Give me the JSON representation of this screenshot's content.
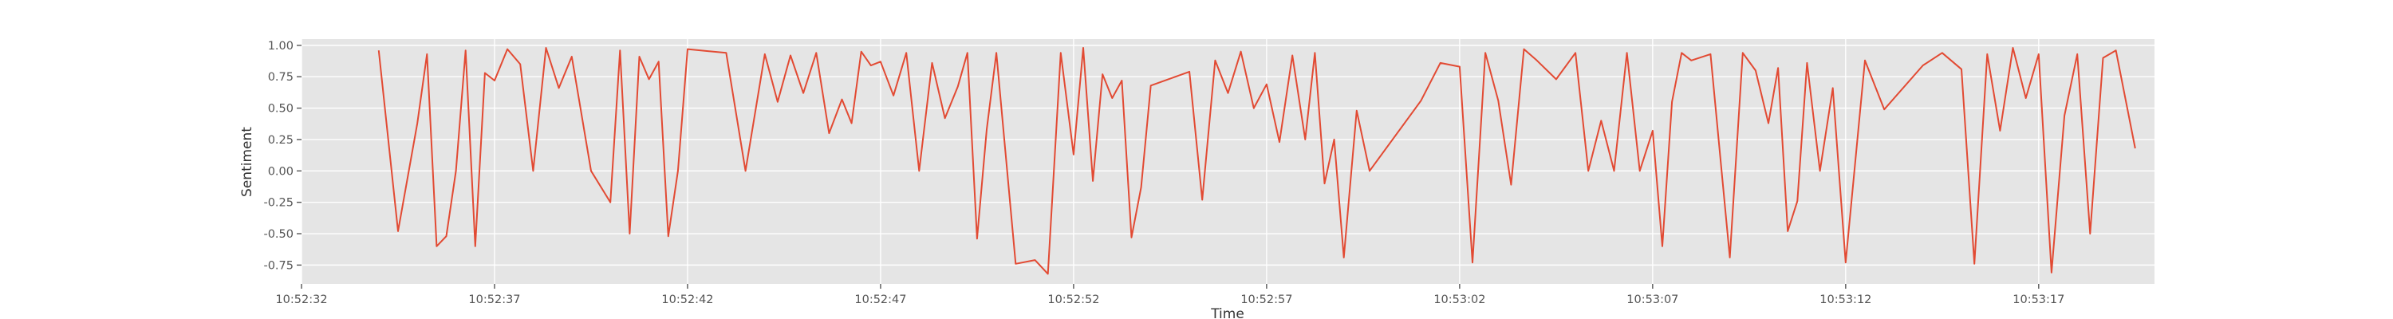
{
  "chart_data": {
    "type": "line",
    "title": "",
    "xlabel": "Time",
    "ylabel": "Sentiment",
    "xlim": [
      "10:52:32",
      "10:53:20"
    ],
    "ylim": [
      -0.9,
      1.05
    ],
    "grid": true,
    "legend": "none",
    "x_ticks": [
      "10:52:32",
      "10:52:37",
      "10:52:42",
      "10:52:47",
      "10:52:52",
      "10:52:57",
      "10:53:02",
      "10:53:07",
      "10:53:12",
      "10:53:17"
    ],
    "y_ticks": [
      "1.00",
      "0.75",
      "0.50",
      "0.25",
      "0.00",
      "-0.25",
      "-0.50",
      "-0.75"
    ],
    "y_tick_values": [
      1.0,
      0.75,
      0.5,
      0.25,
      0.0,
      -0.25,
      -0.5,
      -0.75
    ],
    "series": [
      {
        "color": "#e24a33",
        "points": [
          [
            "10:52:34",
            0.96
          ],
          [
            "10:52:34",
            -0.48
          ],
          [
            "10:52:35",
            0.38
          ],
          [
            "10:52:35",
            0.93
          ],
          [
            "10:52:35",
            -0.6
          ],
          [
            "10:52:35",
            -0.52
          ],
          [
            "10:52:36",
            0.0
          ],
          [
            "10:52:36",
            0.96
          ],
          [
            "10:52:36",
            -0.6
          ],
          [
            "10:52:36",
            0.78
          ],
          [
            "10:52:37",
            0.72
          ],
          [
            "10:52:37",
            0.97
          ],
          [
            "10:52:37",
            0.85
          ],
          [
            "10:52:38",
            0.0
          ],
          [
            "10:52:38",
            0.98
          ],
          [
            "10:52:38",
            0.66
          ],
          [
            "10:52:39",
            0.91
          ],
          [
            "10:52:39",
            0.0
          ],
          [
            "10:52:40",
            -0.25
          ],
          [
            "10:52:40",
            0.96
          ],
          [
            "10:52:40",
            -0.5
          ],
          [
            "10:52:40",
            0.91
          ],
          [
            "10:52:41",
            0.73
          ],
          [
            "10:52:41",
            0.87
          ],
          [
            "10:52:41",
            -0.52
          ],
          [
            "10:52:41",
            0.0
          ],
          [
            "10:52:42",
            0.97
          ],
          [
            "10:52:43",
            0.94
          ],
          [
            "10:52:43",
            0.0
          ],
          [
            "10:52:44",
            0.93
          ],
          [
            "10:52:44",
            0.55
          ],
          [
            "10:52:44",
            0.92
          ],
          [
            "10:52:45",
            0.62
          ],
          [
            "10:52:45",
            0.94
          ],
          [
            "10:52:45",
            0.3
          ],
          [
            "10:52:46",
            0.57
          ],
          [
            "10:52:46",
            0.38
          ],
          [
            "10:52:46",
            0.95
          ],
          [
            "10:52:46",
            0.84
          ],
          [
            "10:52:47",
            0.87
          ],
          [
            "10:52:47",
            0.6
          ],
          [
            "10:52:47",
            0.94
          ],
          [
            "10:52:48",
            0.0
          ],
          [
            "10:52:48",
            0.86
          ],
          [
            "10:52:48",
            0.42
          ],
          [
            "10:52:49",
            0.67
          ],
          [
            "10:52:49",
            0.94
          ],
          [
            "10:52:49",
            -0.54
          ],
          [
            "10:52:49",
            0.33
          ],
          [
            "10:52:50",
            0.94
          ],
          [
            "10:52:50",
            -0.74
          ],
          [
            "10:52:51",
            -0.71
          ],
          [
            "10:52:51",
            -0.82
          ],
          [
            "10:52:51",
            0.94
          ],
          [
            "10:52:52",
            0.13
          ],
          [
            "10:52:52",
            0.98
          ],
          [
            "10:52:52",
            -0.08
          ],
          [
            "10:52:52",
            0.77
          ],
          [
            "10:52:53",
            0.58
          ],
          [
            "10:52:53",
            0.72
          ],
          [
            "10:52:53",
            -0.53
          ],
          [
            "10:52:53",
            -0.13
          ],
          [
            "10:52:54",
            0.68
          ],
          [
            "10:52:55",
            0.79
          ],
          [
            "10:52:55",
            -0.23
          ],
          [
            "10:52:55",
            0.88
          ],
          [
            "10:52:56",
            0.62
          ],
          [
            "10:52:56",
            0.95
          ],
          [
            "10:52:56",
            0.5
          ],
          [
            "10:52:57",
            0.69
          ],
          [
            "10:52:57",
            0.23
          ],
          [
            "10:52:57",
            0.92
          ],
          [
            "10:52:58",
            0.25
          ],
          [
            "10:52:58",
            0.94
          ],
          [
            "10:52:58",
            -0.1
          ],
          [
            "10:52:58",
            0.25
          ],
          [
            "10:52:59",
            -0.69
          ],
          [
            "10:52:59",
            0.48
          ],
          [
            "10:52:59",
            0.0
          ],
          [
            "10:53:01",
            0.56
          ],
          [
            "10:53:01",
            0.86
          ],
          [
            "10:53:02",
            0.83
          ],
          [
            "10:53:02",
            -0.73
          ],
          [
            "10:53:02",
            0.94
          ],
          [
            "10:53:03",
            0.56
          ],
          [
            "10:53:03",
            -0.11
          ],
          [
            "10:53:03",
            0.97
          ],
          [
            "10:53:04",
            0.88
          ],
          [
            "10:53:04",
            0.73
          ],
          [
            "10:53:05",
            0.94
          ],
          [
            "10:53:05",
            0.0
          ],
          [
            "10:53:05",
            0.4
          ],
          [
            "10:53:06",
            0.0
          ],
          [
            "10:53:06",
            0.94
          ],
          [
            "10:53:06",
            0.0
          ],
          [
            "10:53:07",
            0.32
          ],
          [
            "10:53:07",
            -0.6
          ],
          [
            "10:53:07",
            0.55
          ],
          [
            "10:53:07",
            0.94
          ],
          [
            "10:53:08",
            0.88
          ],
          [
            "10:53:08",
            0.93
          ],
          [
            "10:53:09",
            -0.69
          ],
          [
            "10:53:09",
            0.94
          ],
          [
            "10:53:09",
            0.8
          ],
          [
            "10:53:10",
            0.38
          ],
          [
            "10:53:10",
            0.82
          ],
          [
            "10:53:10",
            -0.48
          ],
          [
            "10:53:10",
            -0.24
          ],
          [
            "10:53:11",
            0.86
          ],
          [
            "10:53:11",
            0.0
          ],
          [
            "10:53:11",
            0.66
          ],
          [
            "10:53:12",
            -0.73
          ],
          [
            "10:53:12",
            0.88
          ],
          [
            "10:53:13",
            0.49
          ],
          [
            "10:53:14",
            0.84
          ],
          [
            "10:53:14",
            0.94
          ],
          [
            "10:53:15",
            0.81
          ],
          [
            "10:53:15",
            -0.74
          ],
          [
            "10:53:15",
            0.93
          ],
          [
            "10:53:16",
            0.32
          ],
          [
            "10:53:16",
            0.98
          ],
          [
            "10:53:16",
            0.58
          ],
          [
            "10:53:17",
            0.93
          ],
          [
            "10:53:17",
            -0.81
          ],
          [
            "10:53:17",
            0.44
          ],
          [
            "10:53:18",
            0.93
          ],
          [
            "10:53:18",
            -0.5
          ],
          [
            "10:53:18",
            0.9
          ],
          [
            "10:53:19",
            0.96
          ],
          [
            "10:53:19",
            0.18
          ]
        ]
      }
    ]
  },
  "style": {
    "plot_bg": "#e5e5e5",
    "grid_color": "#ffffff",
    "line_color": "#e24a33"
  }
}
